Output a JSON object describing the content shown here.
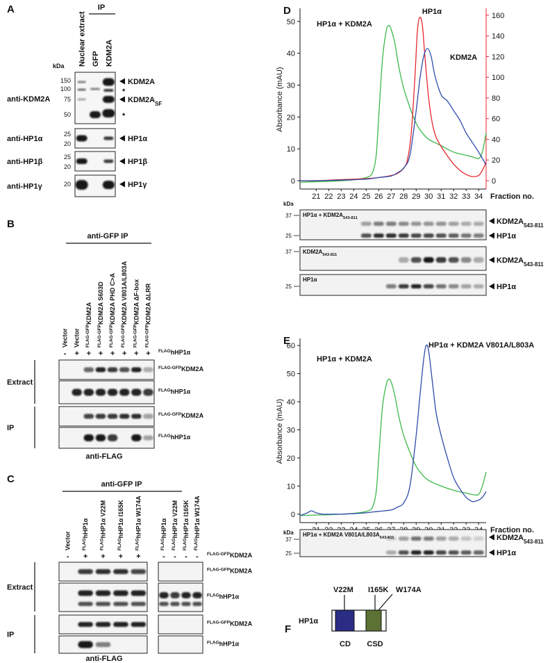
{
  "panel_a": {
    "label": "A",
    "lanes": [
      "Nuclear extract",
      "GFP",
      "KDM2A"
    ],
    "ip": "IP",
    "kda": "kDa",
    "blots": [
      {
        "antibody": "anti-KDM2A",
        "markers": [
          150,
          100,
          75,
          50
        ],
        "bands": [
          "KDM2A",
          "*",
          {
            "text": "KDM2A",
            "sub": "SF"
          },
          "*"
        ]
      },
      {
        "antibody": "anti-HP1α",
        "markers": [
          25,
          20
        ],
        "bands": [
          "HP1α"
        ]
      },
      {
        "antibody": "anti-HP1β",
        "markers": [
          25,
          20
        ],
        "bands": [
          "HP1β"
        ]
      },
      {
        "antibody": "anti-HP1γ",
        "markers": [
          20
        ],
        "bands": [
          "HP1γ"
        ]
      }
    ]
  },
  "panel_b": {
    "label": "B",
    "header": "anti-GFP IP",
    "lanes": [
      "Vector",
      "Vector",
      {
        "sup": "FLAG-GFP",
        "text": "KDM2A"
      },
      {
        "sup": "FLAG-GFP",
        "text": "KDM2A S603D"
      },
      {
        "sup": "FLAG-GFP",
        "text": "KDM2A PHD C>A"
      },
      {
        "sup": "FLAG-GFP",
        "text": "KDM2A V801A/L803A"
      },
      {
        "sup": "FLAG-GFP",
        "text": "KDM2A ΔF-box"
      },
      {
        "sup": "FLAG-GFP",
        "text": "KDM2A ΔLRR"
      }
    ],
    "treatment": [
      "-",
      "+",
      "+",
      "+",
      "+",
      "+",
      "+",
      "+"
    ],
    "treatment_label": {
      "sup": "FLAG",
      "text": "hHP1α"
    },
    "groups": [
      {
        "name": "Extract",
        "blots": [
          {
            "sup": "FLAG-GFP",
            "text": "KDM2A"
          },
          {
            "sup": "FLAG",
            "text": "hHP1α"
          }
        ]
      },
      {
        "name": "IP",
        "blots": [
          {
            "sup": "FLAG-GFP",
            "text": "KDM2A"
          },
          {
            "sup": "FLAG",
            "text": "hHP1α"
          }
        ]
      }
    ],
    "footer": "anti-FLAG"
  },
  "panel_c": {
    "label": "C",
    "header": "anti-GFP IP",
    "lanes": [
      "Vector",
      {
        "sup": "FLAG",
        "text": "hHP1α"
      },
      {
        "sup": "FLAG",
        "text": "hHP1α V22M"
      },
      {
        "sup": "FLAG",
        "text": "hHP1α I165K"
      },
      {
        "sup": "FLAG",
        "text": "hHP1α W174A"
      },
      {
        "sup": "FLAG",
        "text": "hHP1α"
      },
      {
        "sup": "FLAG",
        "text": "hHP1α V22M"
      },
      {
        "sup": "FLAG",
        "text": "hHP1α I165K"
      },
      {
        "sup": "FLAG",
        "text": "hHP1α W174A"
      }
    ],
    "treatment": [
      "-",
      "+",
      "+",
      "+",
      "+",
      "-",
      "-",
      "-",
      "-"
    ],
    "treatment_label": {
      "sup": "FLAG-GFP",
      "text": "KDM2A"
    },
    "groups": [
      {
        "name": "Extract",
        "blots": [
          {
            "sup": "FLAG-GFP",
            "text": "KDM2A"
          },
          {
            "sup": "FLAG",
            "text": "hHP1α"
          }
        ]
      },
      {
        "name": "IP",
        "blots": [
          {
            "sup": "FLAG-GFP",
            "text": "KDM2A"
          },
          {
            "sup": "FLAG",
            "text": "hHP1α"
          }
        ]
      }
    ],
    "footer": "anti-FLAG"
  },
  "chart_data": [
    {
      "type": "line",
      "panel_label": "D",
      "ylabel": "Absorbance (mAU)",
      "xlabel": "Fraction no.",
      "xlim": [
        19.7,
        34.6
      ],
      "xticks": [
        21,
        22,
        23,
        24,
        25,
        26,
        27,
        28,
        29,
        30,
        31,
        32,
        33,
        34
      ],
      "ylim": [
        -2.6,
        54.1
      ],
      "yticks": [
        0,
        10,
        20,
        30,
        40,
        50
      ],
      "y2lim": [
        -8.1,
        166.7
      ],
      "y2ticks": [
        0,
        20,
        40,
        60,
        80,
        100,
        120,
        140,
        160
      ],
      "y2color": "#e8262d",
      "series": [
        {
          "name": "HP1α + KDM2A",
          "color": "#3cb84a",
          "x": [
            19.7,
            21,
            22,
            23,
            24,
            25,
            25.5,
            25.8,
            26,
            26.3,
            26.6,
            26.8,
            27,
            27.3,
            27.6,
            28,
            28.5,
            29,
            29.5,
            30,
            31,
            32,
            33,
            33.5,
            34,
            34.3,
            34.6
          ],
          "values": [
            -0.5,
            -0.3,
            -0.2,
            0,
            0.3,
            1,
            2.5,
            8,
            20,
            38,
            47,
            48.7,
            47.5,
            43,
            36,
            29,
            23,
            18,
            15,
            13,
            11,
            9,
            8,
            7.5,
            7,
            9,
            15
          ]
        },
        {
          "name": "HP1α",
          "color": "#e8262d",
          "axis": "y2",
          "x": [
            19.7,
            21,
            23,
            25,
            26,
            27,
            27.5,
            28,
            28.3,
            28.6,
            28.9,
            29.1,
            29.3,
            29.5,
            29.7,
            30,
            30.3,
            30.6,
            31,
            31.5,
            32,
            32.5,
            33,
            33.5,
            34,
            34.3,
            34.6
          ],
          "values": [
            0,
            0,
            1,
            2,
            3,
            5,
            7,
            12,
            20,
            45,
            100,
            145,
            158,
            150,
            120,
            80,
            55,
            42,
            33,
            24,
            16,
            10,
            6,
            4,
            5,
            10,
            18
          ]
        },
        {
          "name": "KDM2A",
          "color": "#2e4aa8",
          "x": [
            19.7,
            21,
            23,
            25,
            26,
            27,
            27.5,
            28,
            28.5,
            29,
            29.3,
            29.6,
            29.9,
            30.2,
            30.5,
            31,
            31.5,
            32,
            32.5,
            33,
            33.5,
            34,
            34.3,
            34.6
          ],
          "values": [
            0,
            0,
            0.2,
            0.5,
            1,
            1.5,
            2.5,
            4,
            8,
            22,
            32,
            39,
            41.5,
            39,
            33,
            27,
            25,
            22,
            19,
            15,
            12,
            9,
            7,
            5
          ]
        }
      ]
    },
    {
      "type": "line",
      "panel_label": "E",
      "ylabel": "Absorbance (mAU)",
      "xlabel": "Fraction no.",
      "xlim": [
        19.7,
        34.6
      ],
      "xticks": [
        21,
        22,
        23,
        24,
        25,
        26,
        27,
        28,
        29,
        30,
        31,
        32,
        33,
        34
      ],
      "ylim": [
        -3,
        62.5
      ],
      "yticks": [
        0,
        10,
        20,
        30,
        40,
        50,
        60
      ],
      "series": [
        {
          "name": "HP1α + KDM2A",
          "color": "#3cb84a",
          "x": [
            19.7,
            21,
            22,
            23,
            24,
            25,
            25.5,
            25.8,
            26,
            26.3,
            26.6,
            26.8,
            27,
            27.3,
            27.6,
            28,
            28.5,
            29,
            29.5,
            30,
            31,
            32,
            33,
            33.5,
            34,
            34.3,
            34.6
          ],
          "values": [
            -0.5,
            -0.3,
            -0.2,
            0,
            0.3,
            1,
            2.5,
            8,
            20,
            38,
            46,
            48,
            47,
            42,
            35,
            28,
            22,
            17,
            14,
            12,
            10,
            8.5,
            7.5,
            7,
            7,
            10,
            15
          ]
        },
        {
          "name": "HP1α + KDM2A V801A/L803A",
          "color": "#2e4aa8",
          "x": [
            19.7,
            20.3,
            20.6,
            21,
            21.5,
            22,
            23,
            24,
            25,
            26,
            27,
            27.5,
            28,
            28.5,
            29,
            29.3,
            29.6,
            29.8,
            30,
            30.3,
            30.6,
            31,
            31.5,
            32,
            32.5,
            33,
            33.5,
            34,
            34.3,
            34.6
          ],
          "values": [
            -0.5,
            0.5,
            1.2,
            0.5,
            0,
            0,
            0,
            0.2,
            0.5,
            1,
            1.5,
            2.5,
            4,
            10,
            28,
            42,
            55,
            60,
            58,
            47,
            36,
            28,
            20,
            13,
            9,
            6,
            4.5,
            5,
            6,
            8
          ]
        }
      ]
    }
  ],
  "panel_d_gels": {
    "kda": "kDa",
    "blots": [
      {
        "title": {
          "text": "HP1α + KDM2A",
          "sub": "543-811"
        },
        "markers": [
          37,
          25
        ],
        "bands": [
          {
            "text": "KDM2A",
            "sub": "543-811"
          },
          "HP1α"
        ]
      },
      {
        "title": {
          "text": "KDM2A",
          "sub": "543-811"
        },
        "markers": [
          37
        ],
        "bands": [
          {
            "text": "KDM2A",
            "sub": "543-811"
          }
        ]
      },
      {
        "title": "HP1α",
        "markers": [
          25
        ],
        "bands": [
          "HP1α"
        ]
      }
    ]
  },
  "panel_e_gels": {
    "kda": "kDa",
    "blots": [
      {
        "title": {
          "text": "HP1α + KDM2A V801A/L803A",
          "sub": "543-811"
        },
        "markers": [
          37,
          25
        ],
        "bands": [
          {
            "text": "KDM2A",
            "sub": "543-811"
          },
          "HP1α"
        ]
      }
    ]
  },
  "panel_f": {
    "label": "F",
    "protein": "HP1α",
    "mutations": [
      "V22M",
      "I165K",
      "W174A"
    ],
    "domains": [
      "CD",
      "CSD"
    ]
  }
}
